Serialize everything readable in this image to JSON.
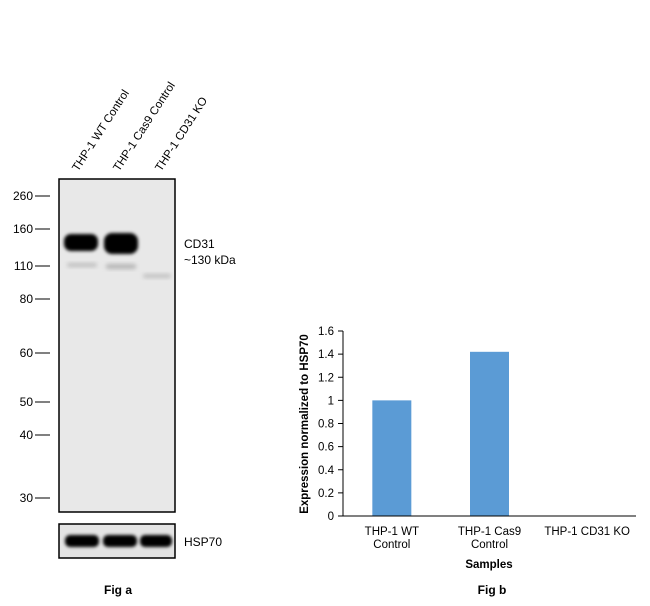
{
  "fig_a": {
    "caption": "Fig a",
    "lanes": [
      "THP-1 WT Control",
      "THP-1 Cas9 Control",
      "THP-1 CD31 KO"
    ],
    "mw_markers": [
      "260",
      "160",
      "110",
      "80",
      "60",
      "50",
      "40",
      "30"
    ],
    "target_label": "CD31",
    "target_size": "~130 kDa",
    "loading_control": "HSP70"
  },
  "chart_data": {
    "type": "bar",
    "title": "",
    "caption": "Fig b",
    "categories": [
      [
        "THP-1 WT",
        "Control"
      ],
      [
        "THP-1 Cas9",
        "Control"
      ],
      [
        "THP-1 CD31 KO"
      ]
    ],
    "values": [
      1.0,
      1.42,
      0.0
    ],
    "xlabel": "Samples",
    "ylabel": "Expression normalized to HSP70",
    "ylim": [
      0,
      1.6
    ],
    "yticks": [
      "0",
      "0.2",
      "0.4",
      "0.6",
      "0.8",
      "1",
      "1.2",
      "1.4",
      "1.6"
    ],
    "bar_color": "#5b9bd5",
    "grid": false,
    "legend": "none"
  }
}
